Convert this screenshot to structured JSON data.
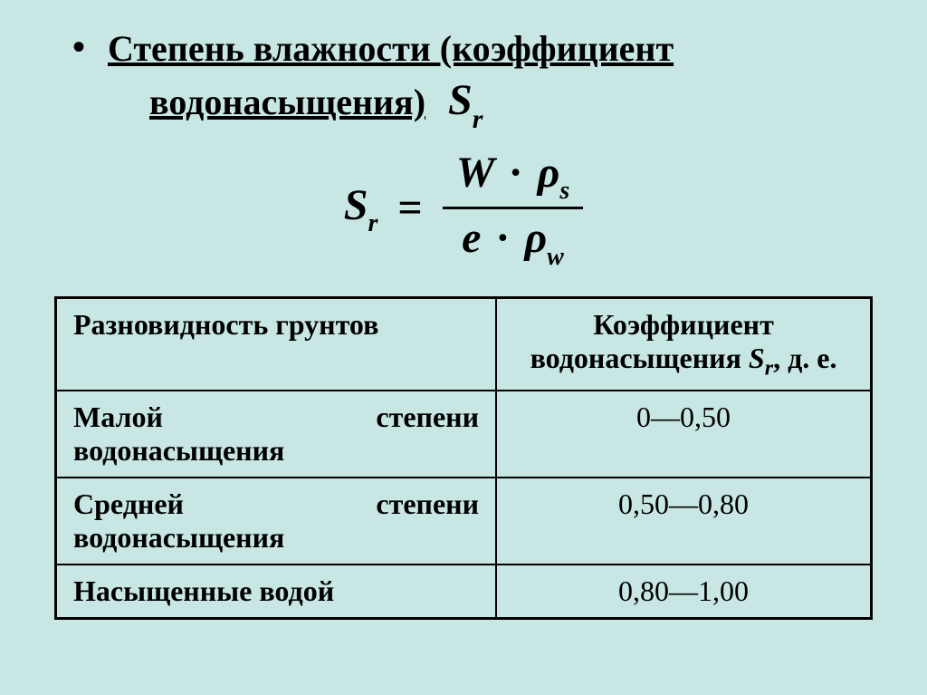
{
  "colors": {
    "background": "#c8e7e4",
    "text": "#000000",
    "border": "#000000"
  },
  "title": {
    "line1": "Степень влажности (коэффициент",
    "line2": "водонасыщения)",
    "symbol_base": "S",
    "symbol_sub": "r"
  },
  "formula": {
    "lhs_base": "S",
    "lhs_sub": "r",
    "numerator_left": "W",
    "numerator_op": "·",
    "numerator_rho": "ρ",
    "numerator_sub": "s",
    "denominator_left": "e",
    "denominator_op": "·",
    "denominator_rho": "ρ",
    "denominator_sub": "w"
  },
  "table": {
    "header_col1": "Разновидность грунтов",
    "header_col2_pre": "Коэффициент водонасыщения ",
    "header_col2_sym": "S",
    "header_col2_sub": "r",
    "header_col2_post": ", д. е.",
    "rows": [
      {
        "type_l1": "Малой",
        "type_l2": "степени",
        "type_l3": "водонасыщения",
        "value": "0—0,50",
        "twoLine": true
      },
      {
        "type_l1": "Средней",
        "type_l2": "степени",
        "type_l3": "водонасыщения",
        "value": "0,50—0,80",
        "twoLine": true
      },
      {
        "type_l1": "Насыщенные водой",
        "type_l2": "",
        "type_l3": "",
        "value": "0,80—1,00",
        "twoLine": false
      }
    ],
    "col1_width_pct": 54
  },
  "typography": {
    "title_fontsize": 40,
    "formula_fontsize": 48,
    "table_fontsize": 32,
    "font_family": "Times New Roman"
  }
}
